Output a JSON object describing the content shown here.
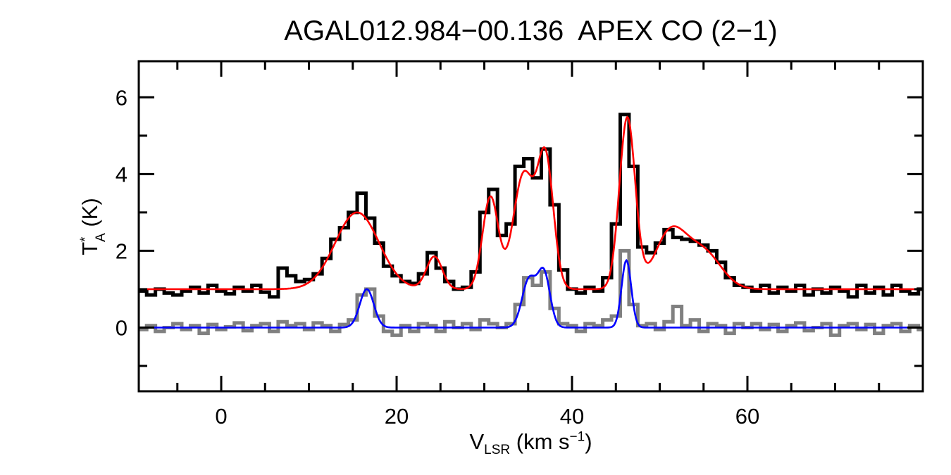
{
  "chart_data": {
    "type": "line",
    "title": "AGAL012.984−00.136  APEX CO (2−1)",
    "xlabel": {
      "main": "V",
      "sub": "LSR",
      "rest": " (km s",
      "sup": "−1",
      "end": ")"
    },
    "ylabel": {
      "main": "T",
      "sup": "*",
      "sub": "A",
      "rest": " (K)"
    },
    "xlim": [
      -9.4,
      80
    ],
    "ylim": [
      -1.66,
      6.94
    ],
    "xticks": [
      0,
      20,
      40,
      60
    ],
    "yticks": [
      0,
      2,
      4,
      6
    ],
    "grid": false,
    "colors": {
      "spectrum": "#000000",
      "residual": "#808080",
      "fit_total": "#ff0000",
      "fit_selected": "#0000ff"
    },
    "x": [
      -9,
      -8,
      -7,
      -6,
      -5,
      -4,
      -3,
      -2,
      -1,
      0,
      1,
      2,
      3,
      4,
      5,
      6,
      7,
      8,
      9,
      10,
      11,
      12,
      13,
      14,
      15,
      16,
      17,
      18,
      19,
      20,
      21,
      22,
      23,
      24,
      25,
      26,
      27,
      28,
      29,
      30,
      31,
      32,
      33,
      34,
      35,
      36,
      37,
      38,
      39,
      40,
      41,
      42,
      43,
      44,
      45,
      46,
      47,
      48,
      49,
      50,
      51,
      52,
      53,
      54,
      55,
      56,
      57,
      58,
      59,
      60,
      61,
      62,
      63,
      64,
      65,
      66,
      67,
      68,
      69,
      70,
      71,
      72,
      73,
      74,
      75,
      76,
      77,
      78,
      79,
      80
    ],
    "series": [
      {
        "style": "step",
        "color": "#000000",
        "values": [
          0.95,
          0.85,
          1.0,
          0.9,
          0.85,
          0.95,
          1.05,
          0.9,
          1.1,
          0.95,
          0.88,
          1.05,
          0.95,
          1.1,
          0.92,
          0.8,
          1.55,
          1.35,
          1.2,
          1.25,
          1.4,
          1.8,
          2.3,
          2.6,
          3.0,
          3.5,
          2.85,
          2.2,
          1.6,
          1.35,
          1.2,
          1.15,
          1.4,
          1.95,
          1.55,
          1.2,
          1.0,
          1.05,
          1.45,
          3.0,
          3.6,
          2.4,
          2.7,
          4.2,
          4.4,
          3.9,
          4.65,
          3.2,
          1.5,
          1.0,
          0.9,
          1.05,
          0.95,
          1.3,
          2.7,
          5.55,
          4.2,
          2.1,
          1.95,
          2.2,
          2.55,
          2.35,
          2.3,
          2.25,
          2.15,
          2.0,
          1.7,
          1.3,
          1.1,
          1.05,
          0.95,
          1.1,
          0.9,
          1.05,
          0.95,
          1.1,
          0.85,
          1.0,
          0.9,
          1.05,
          0.95,
          0.8,
          1.1,
          0.9,
          1.05,
          0.85,
          1.1,
          0.95,
          0.88,
          1.0
        ]
      },
      {
        "style": "step",
        "color": "#808080",
        "values": [
          -0.05,
          0.05,
          -0.1,
          0.0,
          0.1,
          -0.05,
          0.05,
          -0.15,
          0.08,
          -0.05,
          0.02,
          0.12,
          -0.08,
          0.05,
          0.1,
          -0.1,
          0.15,
          0.05,
          0.1,
          -0.05,
          0.12,
          0.05,
          -0.1,
          0.08,
          0.2,
          0.85,
          1.0,
          0.3,
          -0.1,
          -0.2,
          0.05,
          -0.1,
          0.1,
          0.05,
          -0.1,
          0.15,
          0.0,
          0.1,
          -0.05,
          0.2,
          0.1,
          0.0,
          0.1,
          0.6,
          1.3,
          1.1,
          1.45,
          0.5,
          0.1,
          0.05,
          -0.1,
          0.1,
          0.05,
          0.2,
          0.3,
          2.0,
          0.6,
          0.05,
          0.1,
          -0.05,
          0.15,
          0.55,
          0.05,
          0.2,
          -0.1,
          0.1,
          0.05,
          -0.15,
          0.1,
          0.0,
          0.1,
          -0.05,
          0.08,
          -0.1,
          0.05,
          0.12,
          -0.08,
          0.0,
          0.1,
          -0.2,
          0.05,
          0.1,
          -0.05,
          0.08,
          -0.15,
          0.05,
          0.1,
          -0.1,
          0.05,
          -0.05
        ]
      }
    ],
    "fits": [
      {
        "color": "#ff0000",
        "baseline": 1.0,
        "components": [
          {
            "center": 15.5,
            "amp": 2.0,
            "sigma": 2.5
          },
          {
            "center": 24.3,
            "amp": 0.85,
            "sigma": 0.9
          },
          {
            "center": 30.7,
            "amp": 2.4,
            "sigma": 0.9
          },
          {
            "center": 34.5,
            "amp": 3.0,
            "sigma": 1.2
          },
          {
            "center": 37.0,
            "amp": 3.3,
            "sigma": 0.9
          },
          {
            "center": 46.3,
            "amp": 4.45,
            "sigma": 0.9
          },
          {
            "center": 51.2,
            "amp": 1.45,
            "sigma": 1.8
          },
          {
            "center": 55.0,
            "amp": 0.95,
            "sigma": 2.0
          }
        ]
      },
      {
        "color": "#0000ff",
        "baseline": 0.0,
        "components": [
          {
            "center": 16.6,
            "amp": 1.0,
            "sigma": 0.8
          },
          {
            "center": 35.1,
            "amp": 1.25,
            "sigma": 0.8
          },
          {
            "center": 36.8,
            "amp": 1.4,
            "sigma": 0.7
          },
          {
            "center": 46.2,
            "amp": 1.75,
            "sigma": 0.55
          }
        ]
      }
    ]
  }
}
